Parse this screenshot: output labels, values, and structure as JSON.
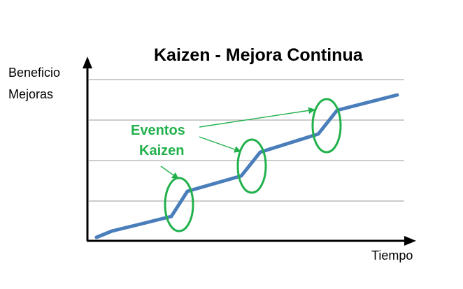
{
  "diagram": {
    "title": "Kaizen - Mejora Continua",
    "y_axis_label_line1": "Beneficio",
    "y_axis_label_line2": "Mejoras",
    "x_axis_label": "Tiempo",
    "annotation_line1": "Eventos",
    "annotation_line2": "Kaizen"
  },
  "colors": {
    "line": "#4a7ebb",
    "events": "#22b14c",
    "axis": "#000000",
    "grid": "#9a9a9a"
  },
  "icons": {
    "y_axis_arrow": "arrow-up-icon",
    "x_axis_arrow": "arrow-right-icon"
  }
}
